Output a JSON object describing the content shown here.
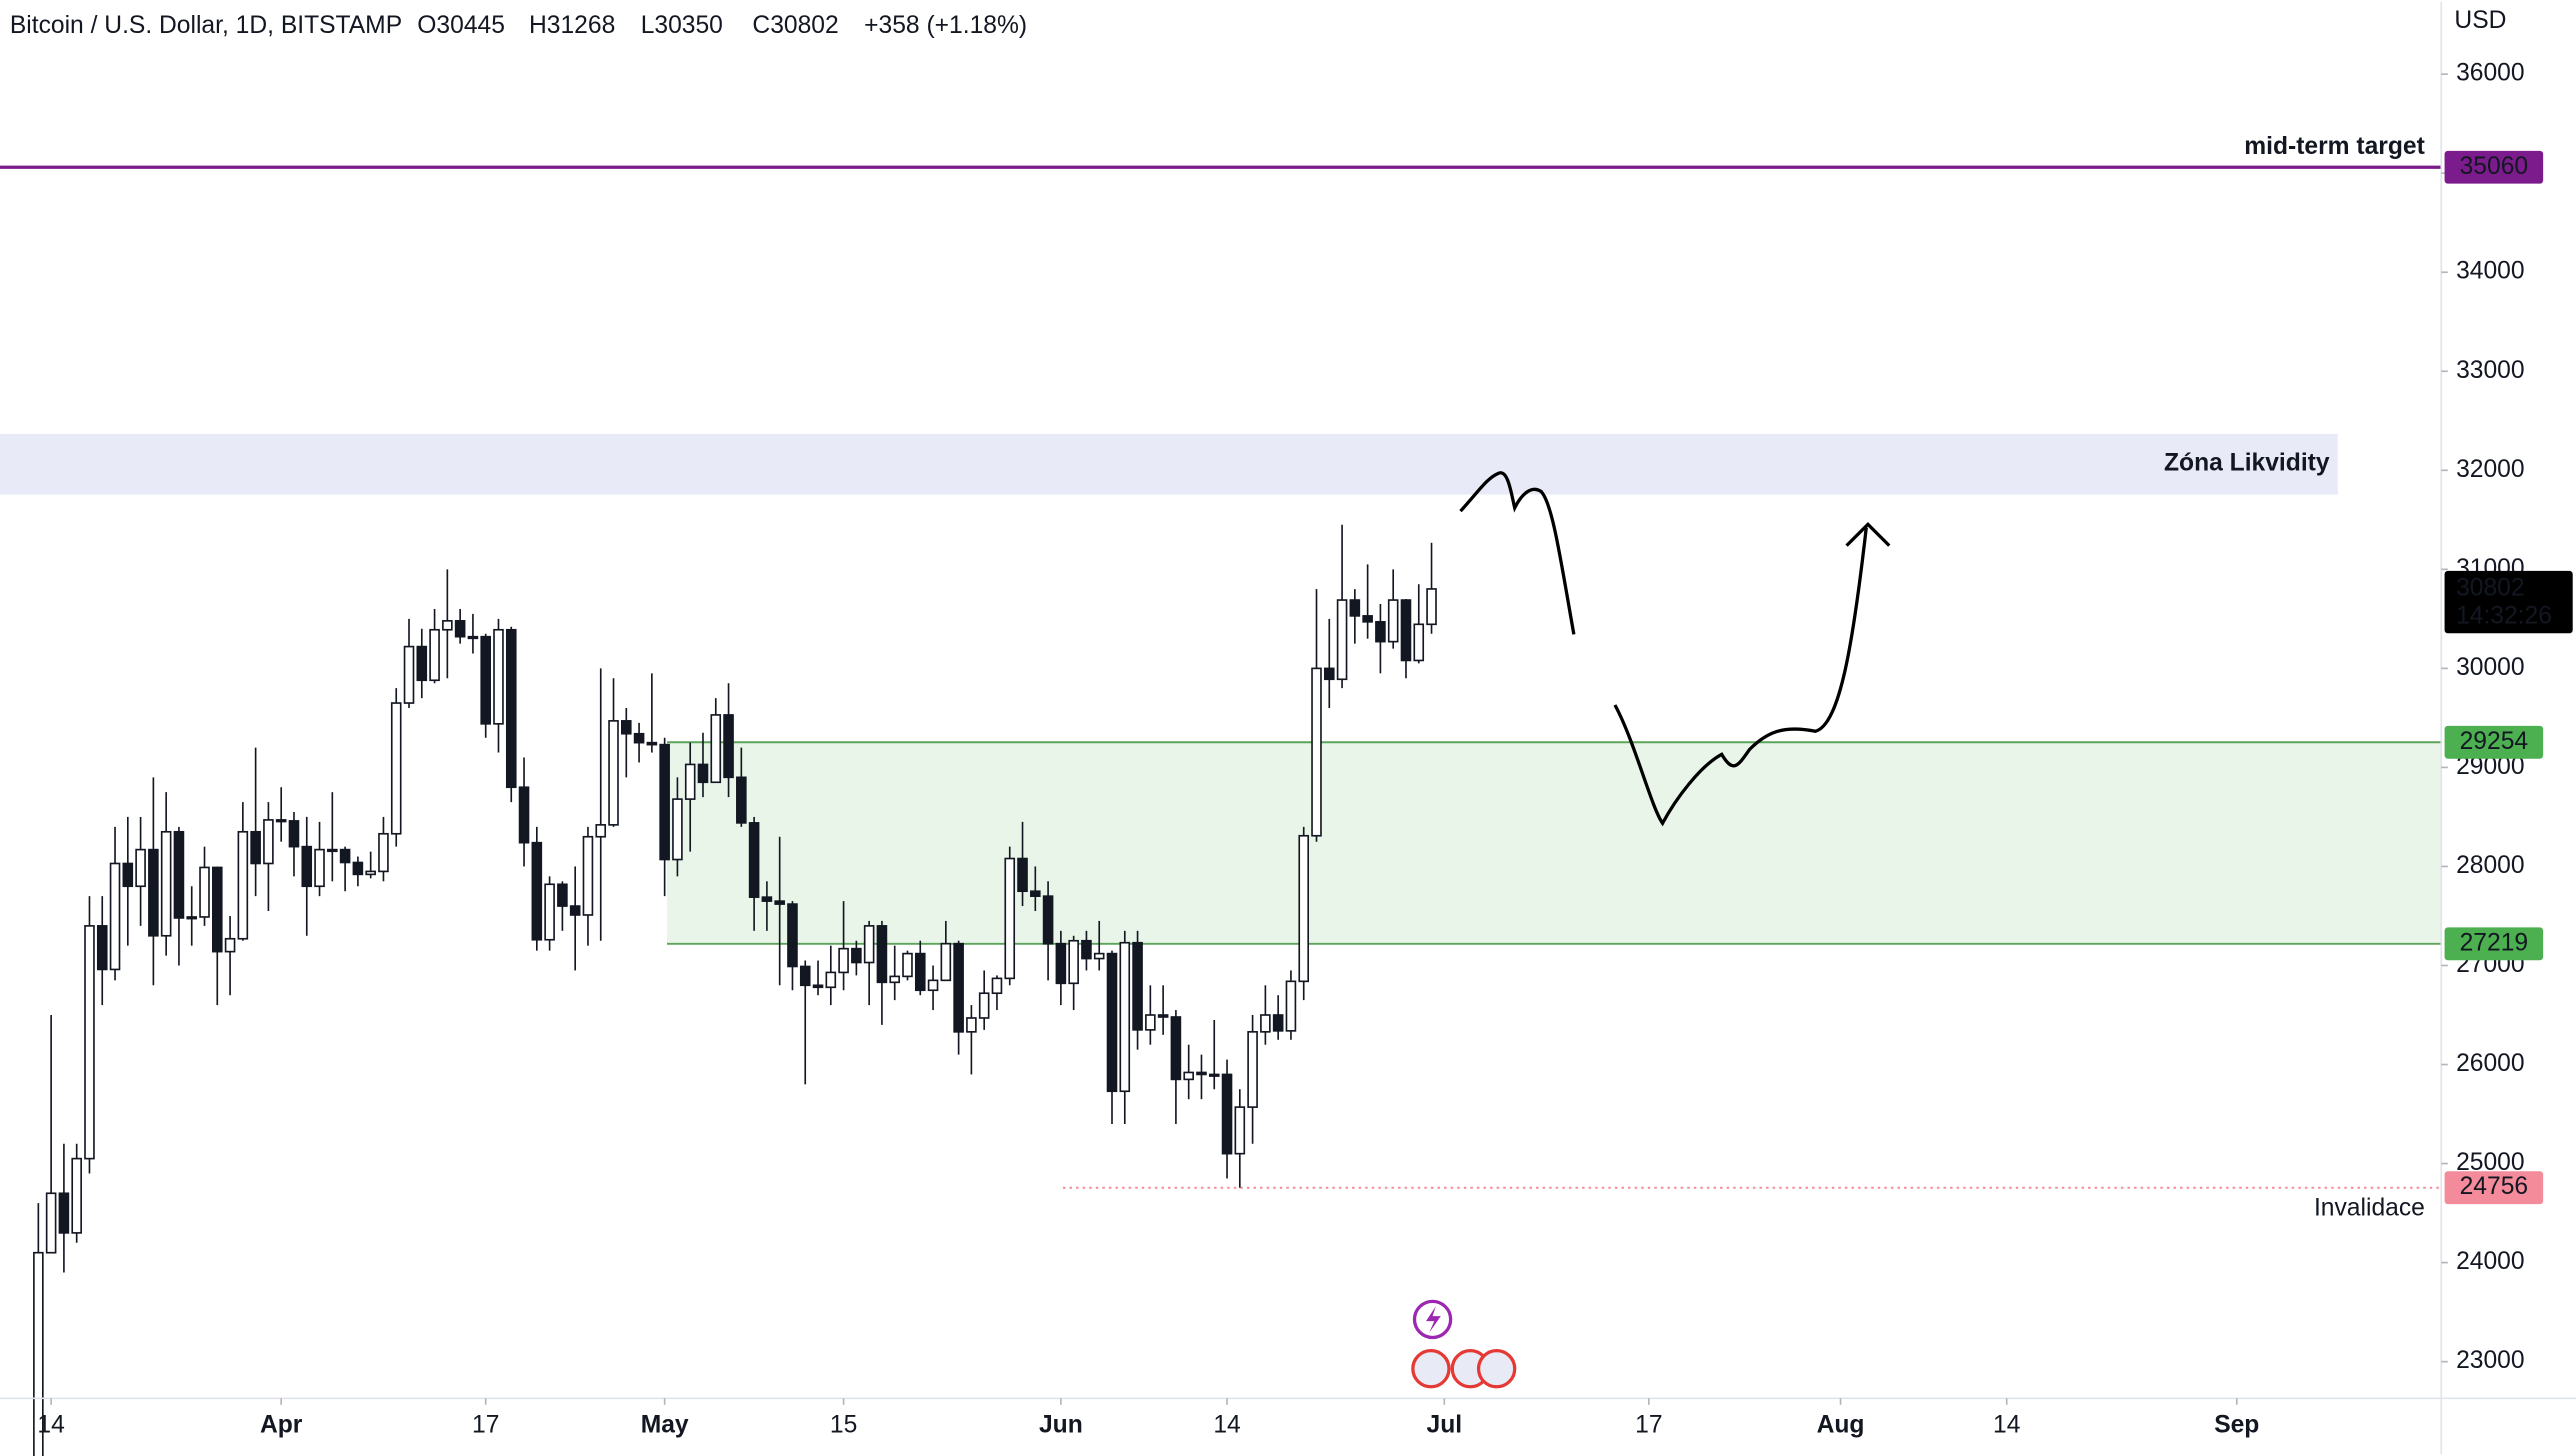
{
  "header": {
    "symbol": "Bitcoin / U.S. Dollar, 1D, BITSTAMP",
    "ohlc": [
      "O30445",
      "H31268",
      "L30350",
      "C30802",
      "+358 (+1.18%)"
    ]
  },
  "chart_data": {
    "type": "candlestick",
    "currency": "USD",
    "countdown": "14:32:26",
    "up_color": "#ffffff",
    "down_color": "#131722",
    "outline_color": "#131722",
    "x": [
      "Mar 13",
      "Mar 14",
      "Mar 15",
      "Mar 16",
      "Mar 17",
      "Mar 18",
      "Mar 19",
      "Mar 20",
      "Mar 21",
      "Mar 22",
      "Mar 23",
      "Mar 24",
      "Mar 25",
      "Mar 26",
      "Mar 27",
      "Mar 28",
      "Mar 29",
      "Mar 30",
      "Mar 31",
      "Apr 1",
      "Apr 2",
      "Apr 3",
      "Apr 4",
      "Apr 5",
      "Apr 6",
      "Apr 7",
      "Apr 8",
      "Apr 9",
      "Apr 10",
      "Apr 11",
      "Apr 12",
      "Apr 13",
      "Apr 14",
      "Apr 15",
      "Apr 16",
      "Apr 17",
      "Apr 18",
      "Apr 19",
      "Apr 20",
      "Apr 21",
      "Apr 22",
      "Apr 23",
      "Apr 24",
      "Apr 25",
      "Apr 26",
      "Apr 27",
      "Apr 28",
      "Apr 29",
      "Apr 30",
      "May 1",
      "May 2",
      "May 3",
      "May 4",
      "May 5",
      "May 6",
      "May 7",
      "May 8",
      "May 9",
      "May 10",
      "May 11",
      "May 12",
      "May 13",
      "May 14",
      "May 15",
      "May 16",
      "May 17",
      "May 18",
      "May 19",
      "May 20",
      "May 21",
      "May 22",
      "May 23",
      "May 24",
      "May 25",
      "May 26",
      "May 27",
      "May 28",
      "May 29",
      "May 30",
      "May 31",
      "Jun 1",
      "Jun 2",
      "Jun 3",
      "Jun 4",
      "Jun 5",
      "Jun 6",
      "Jun 7",
      "Jun 8",
      "Jun 9",
      "Jun 10",
      "Jun 11",
      "Jun 12",
      "Jun 13",
      "Jun 14",
      "Jun 15",
      "Jun 16",
      "Jun 17",
      "Jun 18",
      "Jun 19",
      "Jun 20",
      "Jun 21",
      "Jun 22",
      "Jun 23",
      "Jun 24",
      "Jun 25",
      "Jun 26",
      "Jun 27",
      "Jun 28",
      "Jun 29",
      "Jun 30"
    ],
    "candles": [
      [
        22000,
        24600,
        21900,
        24100
      ],
      [
        24100,
        26500,
        24100,
        24700
      ],
      [
        24700,
        25200,
        23900,
        24300
      ],
      [
        24300,
        25200,
        24200,
        25050
      ],
      [
        25050,
        27700,
        24900,
        27400
      ],
      [
        27400,
        27700,
        26600,
        26960
      ],
      [
        26960,
        28400,
        26850,
        28030
      ],
      [
        28030,
        28500,
        27200,
        27800
      ],
      [
        27800,
        28500,
        27400,
        28170
      ],
      [
        28170,
        28900,
        26800,
        27300
      ],
      [
        27300,
        28750,
        27100,
        28350
      ],
      [
        28350,
        28400,
        27000,
        27480
      ],
      [
        27480,
        27800,
        27200,
        27490
      ],
      [
        27490,
        28200,
        27400,
        27990
      ],
      [
        27990,
        28000,
        26600,
        27140
      ],
      [
        27140,
        27500,
        26700,
        27270
      ],
      [
        27270,
        28650,
        27250,
        28350
      ],
      [
        28350,
        29200,
        27700,
        28030
      ],
      [
        28030,
        28650,
        27550,
        28470
      ],
      [
        28470,
        28800,
        28250,
        28460
      ],
      [
        28460,
        28550,
        27900,
        28200
      ],
      [
        28200,
        28500,
        27300,
        27800
      ],
      [
        27800,
        28450,
        27700,
        28170
      ],
      [
        28170,
        28750,
        27850,
        28170
      ],
      [
        28170,
        28200,
        27750,
        28040
      ],
      [
        28040,
        28100,
        27800,
        27920
      ],
      [
        27920,
        28150,
        27880,
        27950
      ],
      [
        27950,
        28500,
        27850,
        28330
      ],
      [
        28330,
        29800,
        28200,
        29650
      ],
      [
        29650,
        30500,
        29600,
        30220
      ],
      [
        30220,
        30400,
        29700,
        29880
      ],
      [
        29880,
        30600,
        29850,
        30390
      ],
      [
        30390,
        31000,
        29900,
        30480
      ],
      [
        30480,
        30600,
        30250,
        30320
      ],
      [
        30320,
        30550,
        30150,
        30320
      ],
      [
        30320,
        30350,
        29300,
        29440
      ],
      [
        29440,
        30500,
        29150,
        30390
      ],
      [
        30390,
        30420,
        28650,
        28800
      ],
      [
        28800,
        29100,
        28000,
        28240
      ],
      [
        28240,
        28400,
        27150,
        27260
      ],
      [
        27260,
        27900,
        27150,
        27820
      ],
      [
        27820,
        27850,
        27350,
        27600
      ],
      [
        27600,
        28000,
        26950,
        27510
      ],
      [
        27510,
        28400,
        27200,
        28300
      ],
      [
        28300,
        30000,
        27250,
        28420
      ],
      [
        28420,
        29900,
        28400,
        29470
      ],
      [
        29470,
        29600,
        28900,
        29340
      ],
      [
        29340,
        29450,
        29050,
        29250
      ],
      [
        29250,
        29950,
        29150,
        29230
      ],
      [
        29230,
        29300,
        27700,
        28070
      ],
      [
        28070,
        28900,
        27900,
        28680
      ],
      [
        28680,
        29250,
        28150,
        29030
      ],
      [
        29030,
        29350,
        28700,
        28850
      ],
      [
        28850,
        29700,
        28850,
        29530
      ],
      [
        29530,
        29850,
        28700,
        28900
      ],
      [
        28900,
        29200,
        28400,
        28440
      ],
      [
        28440,
        28500,
        27350,
        27690
      ],
      [
        27690,
        27850,
        27350,
        27650
      ],
      [
        27650,
        28300,
        26800,
        27620
      ],
      [
        27620,
        27650,
        26750,
        26990
      ],
      [
        26990,
        27050,
        25800,
        26800
      ],
      [
        26800,
        27050,
        26700,
        26780
      ],
      [
        26780,
        27200,
        26600,
        26930
      ],
      [
        26930,
        27650,
        26750,
        27170
      ],
      [
        27170,
        27250,
        26900,
        27030
      ],
      [
        27030,
        27450,
        26600,
        27400
      ],
      [
        27400,
        27450,
        26400,
        26830
      ],
      [
        26830,
        27200,
        26650,
        26890
      ],
      [
        26890,
        27150,
        26850,
        27120
      ],
      [
        27120,
        27250,
        26700,
        26750
      ],
      [
        26750,
        27000,
        26550,
        26850
      ],
      [
        26850,
        27450,
        26850,
        27220
      ],
      [
        27220,
        27250,
        26100,
        26330
      ],
      [
        26330,
        26600,
        25900,
        26470
      ],
      [
        26470,
        26950,
        26350,
        26720
      ],
      [
        26720,
        26900,
        26550,
        26870
      ],
      [
        26870,
        28200,
        26800,
        28080
      ],
      [
        28080,
        28450,
        27600,
        27750
      ],
      [
        27750,
        28000,
        27550,
        27700
      ],
      [
        27700,
        27850,
        26850,
        27220
      ],
      [
        27220,
        27350,
        26600,
        26820
      ],
      [
        26820,
        27300,
        26550,
        27250
      ],
      [
        27250,
        27350,
        26950,
        27070
      ],
      [
        27070,
        27450,
        26950,
        27120
      ],
      [
        27120,
        27150,
        25400,
        25730
      ],
      [
        25730,
        27350,
        25400,
        27230
      ],
      [
        27230,
        27350,
        26150,
        26350
      ],
      [
        26350,
        26800,
        26200,
        26500
      ],
      [
        26500,
        26800,
        26300,
        26480
      ],
      [
        26480,
        26550,
        25400,
        25850
      ],
      [
        25850,
        26200,
        25650,
        25920
      ],
      [
        25920,
        26100,
        25650,
        25900
      ],
      [
        25900,
        26450,
        25750,
        25900
      ],
      [
        25900,
        26050,
        24850,
        25100
      ],
      [
        25100,
        25750,
        24756,
        25570
      ],
      [
        25570,
        26500,
        25200,
        26330
      ],
      [
        26330,
        26800,
        26200,
        26500
      ],
      [
        26500,
        26700,
        26250,
        26340
      ],
      [
        26340,
        26950,
        26250,
        26840
      ],
      [
        26840,
        28400,
        26650,
        28310
      ],
      [
        28310,
        30800,
        28250,
        30000
      ],
      [
        30000,
        30500,
        29600,
        29890
      ],
      [
        29890,
        31450,
        29800,
        30690
      ],
      [
        30690,
        30800,
        30250,
        30530
      ],
      [
        30530,
        31050,
        30300,
        30470
      ],
      [
        30470,
        30650,
        29950,
        30270
      ],
      [
        30270,
        31000,
        30200,
        30690
      ],
      [
        30690,
        30700,
        29900,
        30080
      ],
      [
        30080,
        30850,
        30050,
        30445
      ],
      [
        30445,
        31268,
        30350,
        30802
      ]
    ],
    "xlim": [
      "Mar 10",
      "Sep 17"
    ],
    "xticks": [
      {
        "value": "Mar 14",
        "label": "14"
      },
      {
        "value": "Apr 1",
        "label": "Apr"
      },
      {
        "value": "Apr 17",
        "label": "17"
      },
      {
        "value": "May 1",
        "label": "May"
      },
      {
        "value": "May 15",
        "label": "15"
      },
      {
        "value": "Jun 1",
        "label": "Jun"
      },
      {
        "value": "Jun 14",
        "label": "14"
      },
      {
        "value": "Jul 1",
        "label": "Jul"
      },
      {
        "value": "Jul 17",
        "label": "17"
      },
      {
        "value": "Aug 1",
        "label": "Aug"
      },
      {
        "value": "Aug 14",
        "label": "14"
      },
      {
        "value": "Sep 1",
        "label": "Sep"
      }
    ],
    "ylim": [
      22630,
      36730
    ],
    "yticks": [
      23000,
      24000,
      25000,
      26000,
      27000,
      28000,
      29000,
      30000,
      31000,
      32000,
      33000,
      34000,
      35000,
      36000
    ],
    "target": {
      "name": "mid-term target",
      "value": 35060,
      "color": "#7b1b8c"
    },
    "liquidity_zone": {
      "name": "Zóna Likvidity",
      "from": 31755,
      "to": 32368,
      "color": "#3f51b5",
      "fill": "#e8ebf7"
    },
    "support_zone": {
      "from": 27219,
      "to": 29254,
      "color": "#5aa55a",
      "label_color": "#4caf50",
      "fill": "#e9f5e9"
    },
    "invalidation": {
      "name": "Invalidace",
      "value": 24756,
      "color": "#f48b9a"
    }
  }
}
